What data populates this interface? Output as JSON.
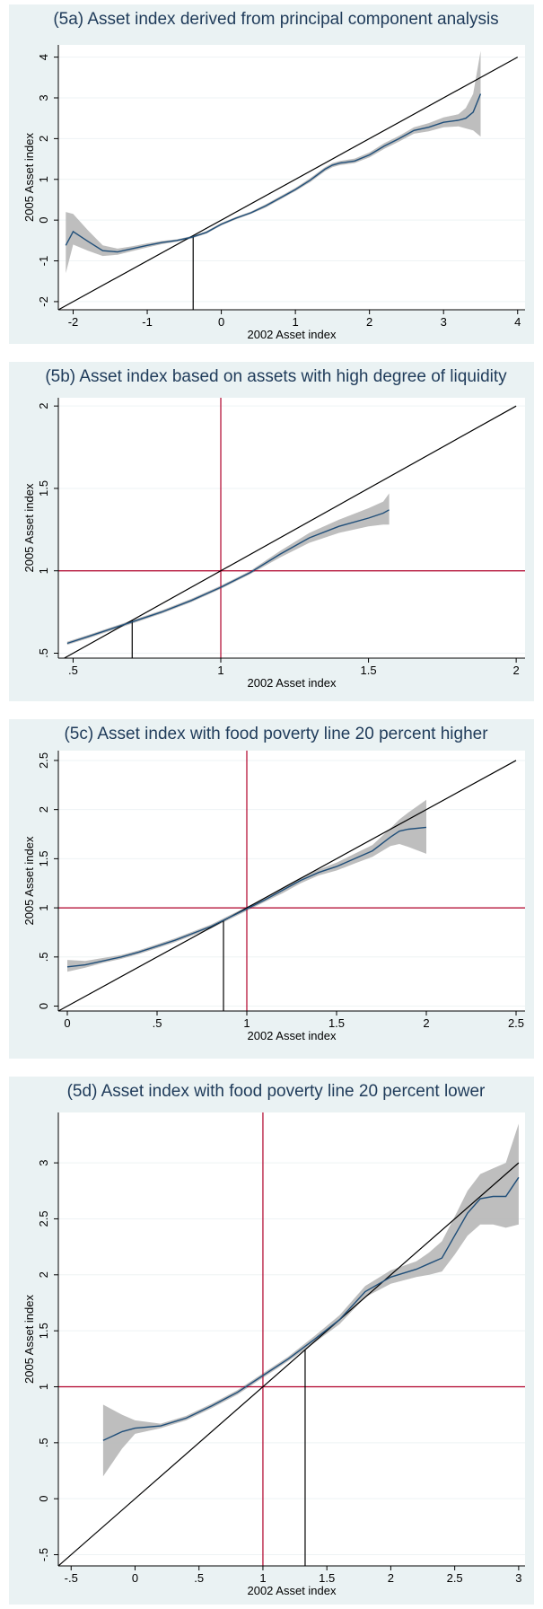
{
  "colors": {
    "panel_bg": "#eaf2f3",
    "plot_bg": "#ffffff",
    "fit_line": "#1f4e79",
    "ci_band": "#b3b3b3",
    "ref_red": "#b0002a",
    "diag": "#000000",
    "title": "#1f3b5a"
  },
  "chart_data": [
    {
      "type": "line",
      "title": "(5a) Asset index derived from principal component analysis",
      "xlabel": "2002 Asset index",
      "ylabel": "2005 Asset index",
      "xlim": [
        -2.2,
        4.1
      ],
      "ylim": [
        -2.2,
        4.3
      ],
      "xticks": [
        -2,
        -1,
        0,
        1,
        2,
        3,
        4
      ],
      "xtick_labels": [
        "-2",
        "-1",
        "0",
        "1",
        "2",
        "3",
        "4"
      ],
      "yticks": [
        -2,
        -1,
        0,
        1,
        2,
        3,
        4
      ],
      "ytick_labels": [
        "-2",
        "-1",
        "0",
        "1",
        "2",
        "3",
        "4"
      ],
      "diagonal": [
        [
          -2.2,
          -2.2
        ],
        [
          4.0,
          4.0
        ]
      ],
      "red_lines": null,
      "drop_line_x": -0.38,
      "series": [
        {
          "x": [
            -2.1,
            -2.0,
            -1.8,
            -1.6,
            -1.4,
            -1.2,
            -1.0,
            -0.8,
            -0.6,
            -0.4,
            -0.2,
            0.0,
            0.2,
            0.4,
            0.6,
            0.8,
            1.0,
            1.2,
            1.4,
            1.5,
            1.6,
            1.8,
            2.0,
            2.2,
            2.4,
            2.6,
            2.8,
            3.0,
            3.2,
            3.3,
            3.4,
            3.5
          ],
          "y": [
            -0.62,
            -0.28,
            -0.52,
            -0.75,
            -0.78,
            -0.7,
            -0.62,
            -0.55,
            -0.5,
            -0.42,
            -0.3,
            -0.1,
            0.05,
            0.18,
            0.35,
            0.55,
            0.75,
            0.98,
            1.25,
            1.35,
            1.4,
            1.45,
            1.6,
            1.82,
            2.0,
            2.2,
            2.28,
            2.4,
            2.45,
            2.5,
            2.65,
            3.1
          ],
          "lower": [
            -1.3,
            -0.6,
            -0.75,
            -0.88,
            -0.85,
            -0.76,
            -0.67,
            -0.59,
            -0.53,
            -0.45,
            -0.33,
            -0.13,
            0.02,
            0.15,
            0.31,
            0.51,
            0.71,
            0.93,
            1.2,
            1.3,
            1.35,
            1.4,
            1.54,
            1.75,
            1.93,
            2.12,
            2.18,
            2.28,
            2.3,
            2.25,
            2.2,
            2.05
          ],
          "upper": [
            0.2,
            0.15,
            -0.25,
            -0.62,
            -0.7,
            -0.64,
            -0.57,
            -0.51,
            -0.47,
            -0.39,
            -0.27,
            -0.07,
            0.08,
            0.21,
            0.39,
            0.59,
            0.79,
            1.03,
            1.3,
            1.4,
            1.45,
            1.51,
            1.66,
            1.89,
            2.07,
            2.28,
            2.38,
            2.52,
            2.6,
            2.75,
            3.1,
            4.15
          ]
        }
      ]
    },
    {
      "type": "line",
      "title": "(5b) Asset index based on assets with high degree of liquidity",
      "xlabel": "2002 Asset index",
      "ylabel": "2005 Asset index",
      "xlim": [
        0.45,
        2.03
      ],
      "ylim": [
        0.47,
        2.05
      ],
      "xticks": [
        0.5,
        1,
        1.5,
        2
      ],
      "xtick_labels": [
        ".5",
        "1",
        "1.5",
        "2"
      ],
      "yticks": [
        0.5,
        1,
        1.5,
        2
      ],
      "ytick_labels": [
        ".5",
        "1",
        "1.5",
        "2"
      ],
      "diagonal": [
        [
          0.47,
          0.47
        ],
        [
          2.0,
          2.0
        ]
      ],
      "red_lines": {
        "x": 1,
        "y": 1
      },
      "drop_line_x": 0.7,
      "series": [
        {
          "x": [
            0.48,
            0.55,
            0.6,
            0.65,
            0.7,
            0.8,
            0.9,
            1.0,
            1.1,
            1.2,
            1.3,
            1.4,
            1.5,
            1.55,
            1.57
          ],
          "y": [
            0.56,
            0.6,
            0.63,
            0.66,
            0.69,
            0.75,
            0.82,
            0.9,
            0.99,
            1.1,
            1.2,
            1.27,
            1.32,
            1.35,
            1.37
          ],
          "lower": [
            0.55,
            0.59,
            0.62,
            0.65,
            0.68,
            0.74,
            0.81,
            0.89,
            0.98,
            1.08,
            1.17,
            1.23,
            1.27,
            1.28,
            1.28
          ],
          "upper": [
            0.57,
            0.61,
            0.64,
            0.67,
            0.7,
            0.76,
            0.83,
            0.91,
            1.0,
            1.12,
            1.23,
            1.31,
            1.38,
            1.42,
            1.47
          ]
        }
      ]
    },
    {
      "type": "line",
      "title": "(5c) Asset index with food poverty line 20 percent higher",
      "xlabel": "2002 Asset index",
      "ylabel": "2005 Asset index",
      "xlim": [
        -0.05,
        2.55
      ],
      "ylim": [
        -0.05,
        2.6
      ],
      "xticks": [
        0,
        0.5,
        1,
        1.5,
        2,
        2.5
      ],
      "xtick_labels": [
        "0",
        ".5",
        "1",
        "1.5",
        "2",
        "2.5"
      ],
      "yticks": [
        0,
        0.5,
        1,
        1.5,
        2,
        2.5
      ],
      "ytick_labels": [
        "0",
        ".5",
        "1",
        "1.5",
        "2",
        "2.5"
      ],
      "diagonal": [
        [
          -0.05,
          -0.05
        ],
        [
          2.5,
          2.5
        ]
      ],
      "red_lines": {
        "x": 1,
        "y": 1
      },
      "drop_line_x": 0.87,
      "series": [
        {
          "x": [
            0.0,
            0.1,
            0.2,
            0.3,
            0.4,
            0.5,
            0.6,
            0.7,
            0.8,
            0.9,
            1.0,
            1.1,
            1.2,
            1.3,
            1.4,
            1.5,
            1.6,
            1.7,
            1.8,
            1.85,
            1.9,
            2.0
          ],
          "y": [
            0.4,
            0.42,
            0.46,
            0.5,
            0.55,
            0.61,
            0.67,
            0.74,
            0.81,
            0.9,
            0.99,
            1.08,
            1.18,
            1.28,
            1.36,
            1.42,
            1.5,
            1.58,
            1.72,
            1.78,
            1.8,
            1.82
          ],
          "lower": [
            0.35,
            0.39,
            0.44,
            0.48,
            0.53,
            0.59,
            0.65,
            0.72,
            0.79,
            0.88,
            0.97,
            1.06,
            1.15,
            1.25,
            1.33,
            1.38,
            1.45,
            1.52,
            1.63,
            1.65,
            1.62,
            1.55
          ],
          "upper": [
            0.47,
            0.46,
            0.49,
            0.52,
            0.57,
            0.63,
            0.69,
            0.76,
            0.83,
            0.92,
            1.01,
            1.1,
            1.21,
            1.31,
            1.39,
            1.46,
            1.55,
            1.64,
            1.81,
            1.9,
            1.97,
            2.1
          ]
        }
      ]
    },
    {
      "type": "line",
      "title": "(5d) Asset index with food poverty line 20 percent lower",
      "xlabel": "2002 Asset index",
      "ylabel": "2005 Asset index",
      "xlim": [
        -0.6,
        3.05
      ],
      "ylim": [
        -0.6,
        3.45
      ],
      "xticks": [
        -0.5,
        0,
        0.5,
        1,
        1.5,
        2,
        2.5,
        3
      ],
      "xtick_labels": [
        "-.5",
        "0",
        ".5",
        "1",
        "1.5",
        "2",
        "2.5",
        "3"
      ],
      "yticks": [
        -0.5,
        0,
        0.5,
        1,
        1.5,
        2,
        2.5,
        3
      ],
      "ytick_labels": [
        "-.5",
        "0",
        ".5",
        "1",
        "1.5",
        "2",
        "2.5",
        "3"
      ],
      "diagonal": [
        [
          -0.6,
          -0.6
        ],
        [
          3.0,
          3.0
        ]
      ],
      "red_lines": {
        "x": 1,
        "y": 1
      },
      "drop_line_x": 1.33,
      "series": [
        {
          "x": [
            -0.25,
            -0.1,
            0.0,
            0.2,
            0.4,
            0.6,
            0.8,
            1.0,
            1.2,
            1.4,
            1.6,
            1.8,
            2.0,
            2.2,
            2.3,
            2.4,
            2.5,
            2.6,
            2.7,
            2.8,
            2.9,
            3.0
          ],
          "y": [
            0.52,
            0.6,
            0.63,
            0.65,
            0.72,
            0.83,
            0.95,
            1.1,
            1.25,
            1.42,
            1.6,
            1.85,
            1.98,
            2.05,
            2.1,
            2.15,
            2.35,
            2.55,
            2.68,
            2.7,
            2.7,
            2.87
          ],
          "lower": [
            0.2,
            0.45,
            0.58,
            0.63,
            0.7,
            0.81,
            0.93,
            1.08,
            1.23,
            1.39,
            1.56,
            1.8,
            1.92,
            1.98,
            2.0,
            2.03,
            2.18,
            2.35,
            2.45,
            2.45,
            2.42,
            2.45
          ],
          "upper": [
            0.84,
            0.75,
            0.7,
            0.67,
            0.74,
            0.85,
            0.97,
            1.12,
            1.27,
            1.45,
            1.64,
            1.9,
            2.04,
            2.12,
            2.2,
            2.3,
            2.52,
            2.75,
            2.9,
            2.95,
            3.0,
            3.35
          ]
        }
      ]
    }
  ]
}
